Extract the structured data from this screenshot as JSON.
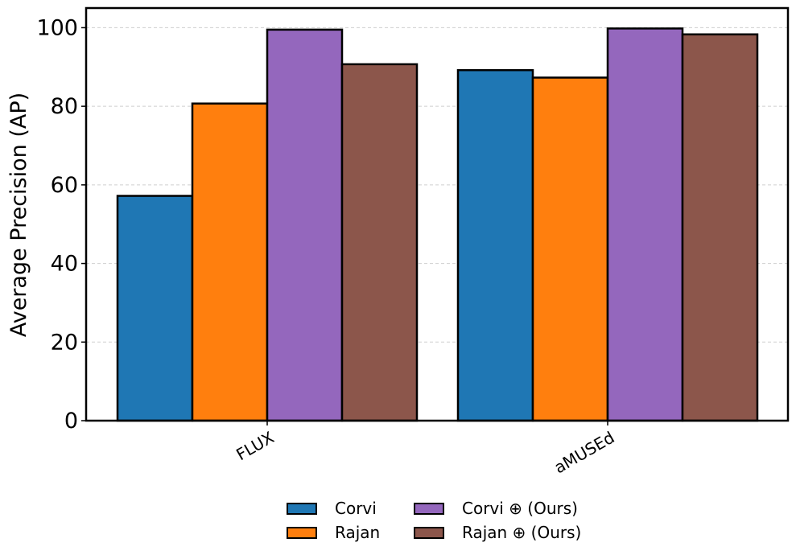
{
  "chart_data": {
    "type": "bar",
    "title": "",
    "xlabel": "",
    "ylabel": "Average Precision (AP)",
    "ylim": [
      0,
      105
    ],
    "yticks": [
      0,
      20,
      40,
      60,
      80,
      100
    ],
    "categories": [
      "FLUX",
      "aMUSEd"
    ],
    "grid": "y-dashed",
    "legend_position": "bottom-center",
    "series": [
      {
        "name": "Corvi",
        "color": "#1f77b4",
        "values": [
          57.2,
          89.2
        ]
      },
      {
        "name": "Rajan",
        "color": "#ff7f0e",
        "values": [
          80.7,
          87.3
        ]
      },
      {
        "name": "Corvi ⊕ (Ours)",
        "color": "#9467bd",
        "values": [
          99.5,
          99.8
        ]
      },
      {
        "name": "Rajan ⊕ (Ours)",
        "color": "#8c564b",
        "values": [
          90.7,
          98.3
        ]
      }
    ]
  }
}
